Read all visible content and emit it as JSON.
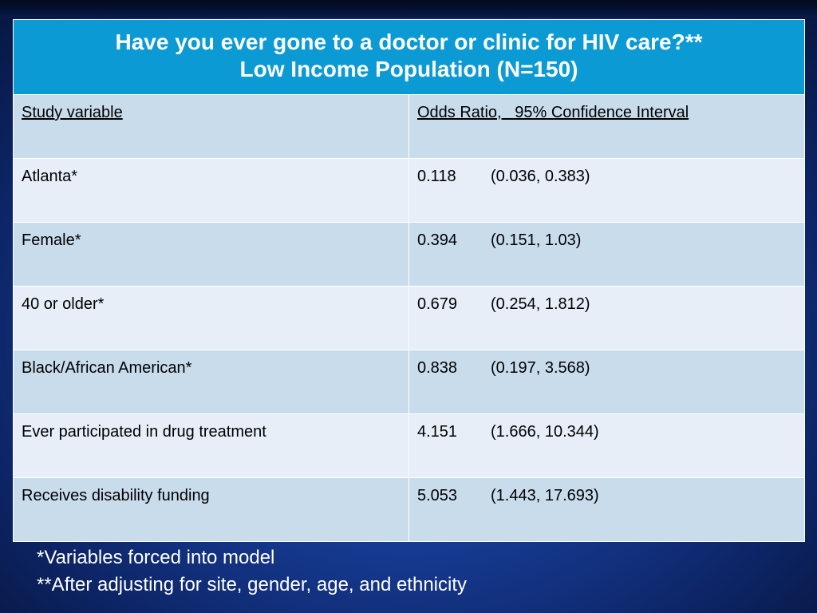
{
  "title": {
    "line1": "Have you ever gone to a doctor or clinic for HIV care?**",
    "line2": "Low Income Population (N=150)"
  },
  "table": {
    "headers": {
      "variable": "Study variable",
      "odds_ratio": "Odds Ratio,   95% Confidence Interval"
    },
    "rows": [
      {
        "variable": "Atlanta*",
        "or": "0.118",
        "ci": "(0.036, 0.383)"
      },
      {
        "variable": "Female*",
        "or": "0.394",
        "ci": "(0.151, 1.03)"
      },
      {
        "variable": "40 or older*",
        "or": "0.679",
        "ci": "(0.254, 1.812)"
      },
      {
        "variable": "Black/African American*",
        "or": "0.838",
        "ci": "(0.197, 3.568)"
      },
      {
        "variable": "Ever participated in drug treatment",
        "or": "4.151",
        "ci": "(1.666, 10.344)"
      },
      {
        "variable": "Receives disability funding",
        "or": "5.053",
        "ci": "(1.443, 17.693)"
      }
    ]
  },
  "footnotes": [
    "*Variables forced into model",
    "**After adjusting for site, gender, age, and ethnicity"
  ],
  "colors": {
    "title_bg": "#0b9ad4",
    "row_dark": "#c9dcec",
    "row_light": "#e7eef8",
    "slide_bg": "#173d97"
  }
}
